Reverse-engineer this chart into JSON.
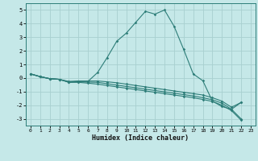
{
  "xlabel": "Humidex (Indice chaleur)",
  "background_color": "#c5e8e8",
  "grid_color": "#a8d0d0",
  "line_color": "#2d7d78",
  "xlim": [
    -0.5,
    23.5
  ],
  "ylim": [
    -3.5,
    5.5
  ],
  "xticks": [
    0,
    1,
    2,
    3,
    4,
    5,
    6,
    7,
    8,
    9,
    10,
    11,
    12,
    13,
    14,
    15,
    16,
    17,
    18,
    19,
    20,
    21,
    22,
    23
  ],
  "yticks": [
    -3,
    -2,
    -1,
    0,
    1,
    2,
    3,
    4,
    5
  ],
  "main_x": [
    0,
    1,
    2,
    3,
    4,
    5,
    6,
    7,
    8,
    9,
    10,
    11,
    12,
    13,
    14,
    15,
    16,
    17,
    18,
    19,
    20,
    21,
    22
  ],
  "main_y": [
    0.3,
    0.1,
    -0.05,
    -0.1,
    -0.3,
    -0.25,
    -0.25,
    0.4,
    1.5,
    2.7,
    3.3,
    4.1,
    4.9,
    4.7,
    5.0,
    3.8,
    2.1,
    0.3,
    -0.2,
    -1.7,
    -2.1,
    -2.3,
    -1.8
  ],
  "flat1_y": [
    0.3,
    0.1,
    -0.05,
    -0.1,
    -0.25,
    -0.22,
    -0.22,
    -0.22,
    -0.28,
    -0.35,
    -0.45,
    -0.55,
    -0.65,
    -0.75,
    -0.85,
    -0.95,
    -1.05,
    -1.15,
    -1.25,
    -1.45,
    -1.7,
    -2.15,
    -1.8
  ],
  "flat2_y": [
    0.3,
    0.1,
    -0.05,
    -0.1,
    -0.3,
    -0.28,
    -0.3,
    -0.32,
    -0.42,
    -0.52,
    -0.62,
    -0.72,
    -0.82,
    -0.92,
    -1.02,
    -1.12,
    -1.22,
    -1.32,
    -1.45,
    -1.6,
    -1.85,
    -2.3,
    -3.0
  ],
  "flat3_y": [
    0.3,
    0.1,
    -0.05,
    -0.1,
    -0.32,
    -0.32,
    -0.38,
    -0.45,
    -0.55,
    -0.65,
    -0.75,
    -0.85,
    -0.95,
    -1.05,
    -1.15,
    -1.25,
    -1.35,
    -1.45,
    -1.58,
    -1.72,
    -2.0,
    -2.4,
    -3.1
  ]
}
